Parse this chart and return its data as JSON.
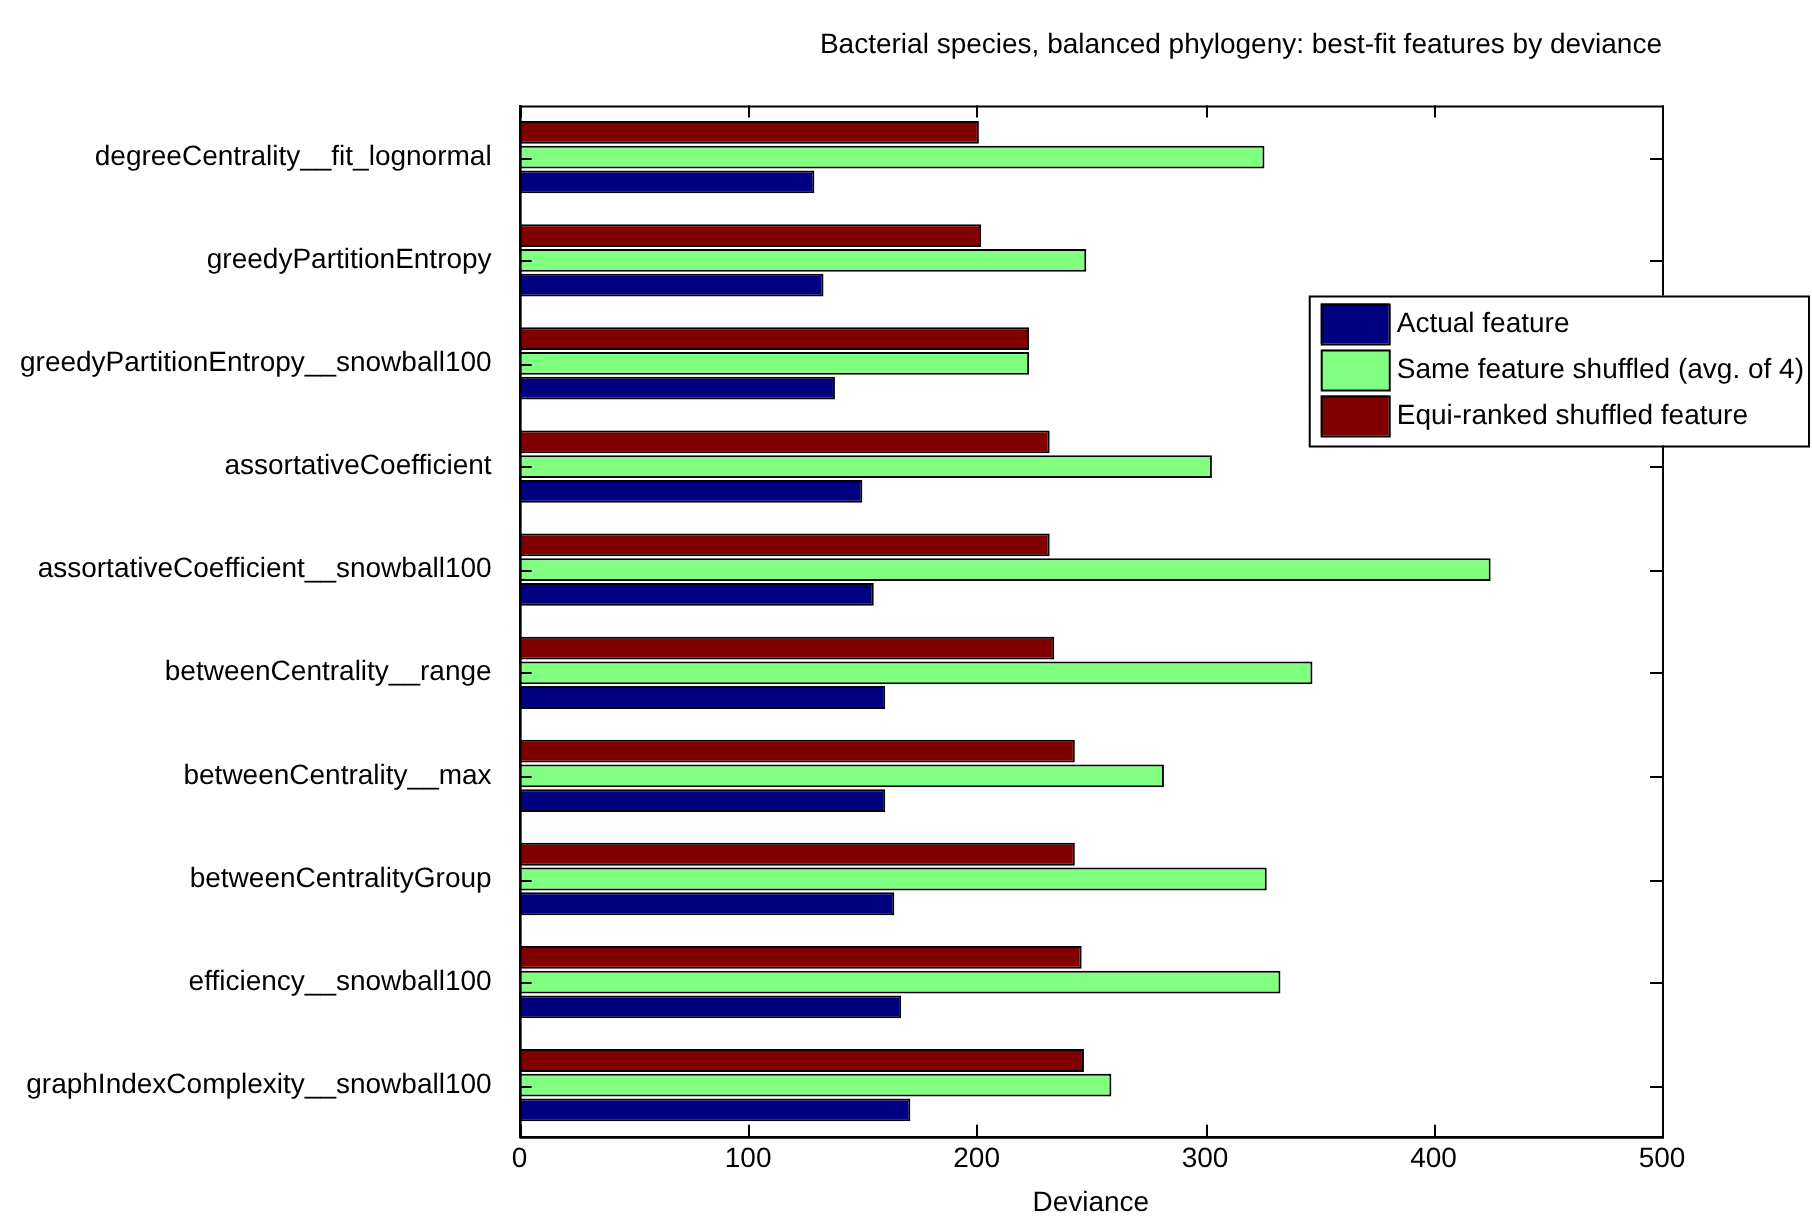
{
  "chart_data": {
    "type": "bar",
    "orientation": "horizontal",
    "title": "Bacterial species, balanced phylogeny: best-fit features by deviance",
    "xlabel": "Deviance",
    "categories": [
      "degreeCentrality__fit_lognormal",
      "greedyPartitionEntropy",
      "greedyPartitionEntropy__snowball100",
      "assortativeCoefficient",
      "assortativeCoefficient__snowball100",
      "betweenCentrality__range",
      "betweenCentrality__max",
      "betweenCentralityGroup",
      "efficiency__snowball100",
      "graphIndexComplexity__snowball100"
    ],
    "series": [
      {
        "name": "Actual feature",
        "color": "#000080",
        "values": [
          129,
          133,
          138,
          150,
          155,
          160,
          160,
          164,
          167,
          171
        ]
      },
      {
        "name": "Same feature shuffled (avg. of 4)",
        "color": "#80ff80",
        "values": [
          326,
          248,
          223,
          303,
          425,
          347,
          282,
          327,
          333,
          259
        ]
      },
      {
        "name": "Equi-ranked shuffled feature",
        "color": "#800000",
        "values": [
          201,
          202,
          223,
          232,
          232,
          234,
          243,
          243,
          246,
          247
        ]
      }
    ],
    "xlim": [
      0,
      500
    ],
    "xticks": [
      0,
      100,
      200,
      300,
      400,
      500
    ],
    "grid": false,
    "legend": "top right"
  }
}
